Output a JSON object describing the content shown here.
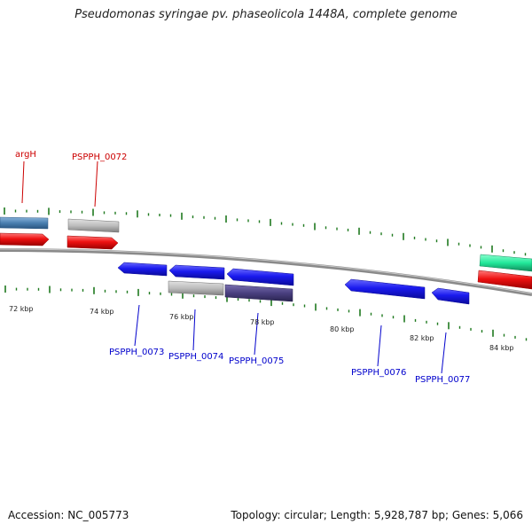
{
  "title": "Pseudomonas syringae pv. phaseolicola 1448A, complete genome",
  "footer": {
    "accession": "Accession: NC_005773",
    "summary": "Topology: circular; Length: 5,928,787 bp; Genes: 5,066"
  },
  "kbp_labels": [
    "72 kbp",
    "74 kbp",
    "76 kbp",
    "78 kbp",
    "80 kbp",
    "82 kbp",
    "84 kbp"
  ],
  "top_labels": [
    "argH",
    "PSPPH_0072"
  ],
  "bottom_labels": [
    "PSPPH_0073",
    "PSPPH_0074",
    "PSPPH_0075",
    "PSPPH_0076",
    "PSPPH_0077"
  ],
  "colors": {
    "forward_gene": "#1a1aee",
    "cds_red": "#ee1111",
    "gray_block": "#bdbdbd",
    "navy_block": "#4a4080",
    "steel_block": "#4a7fb0",
    "teal_block": "#22e89a",
    "tick_green": "#1f7a1f",
    "top_label": "#cc0000",
    "bottom_label": "#0000cc",
    "backbone": "#8a8a8a"
  }
}
